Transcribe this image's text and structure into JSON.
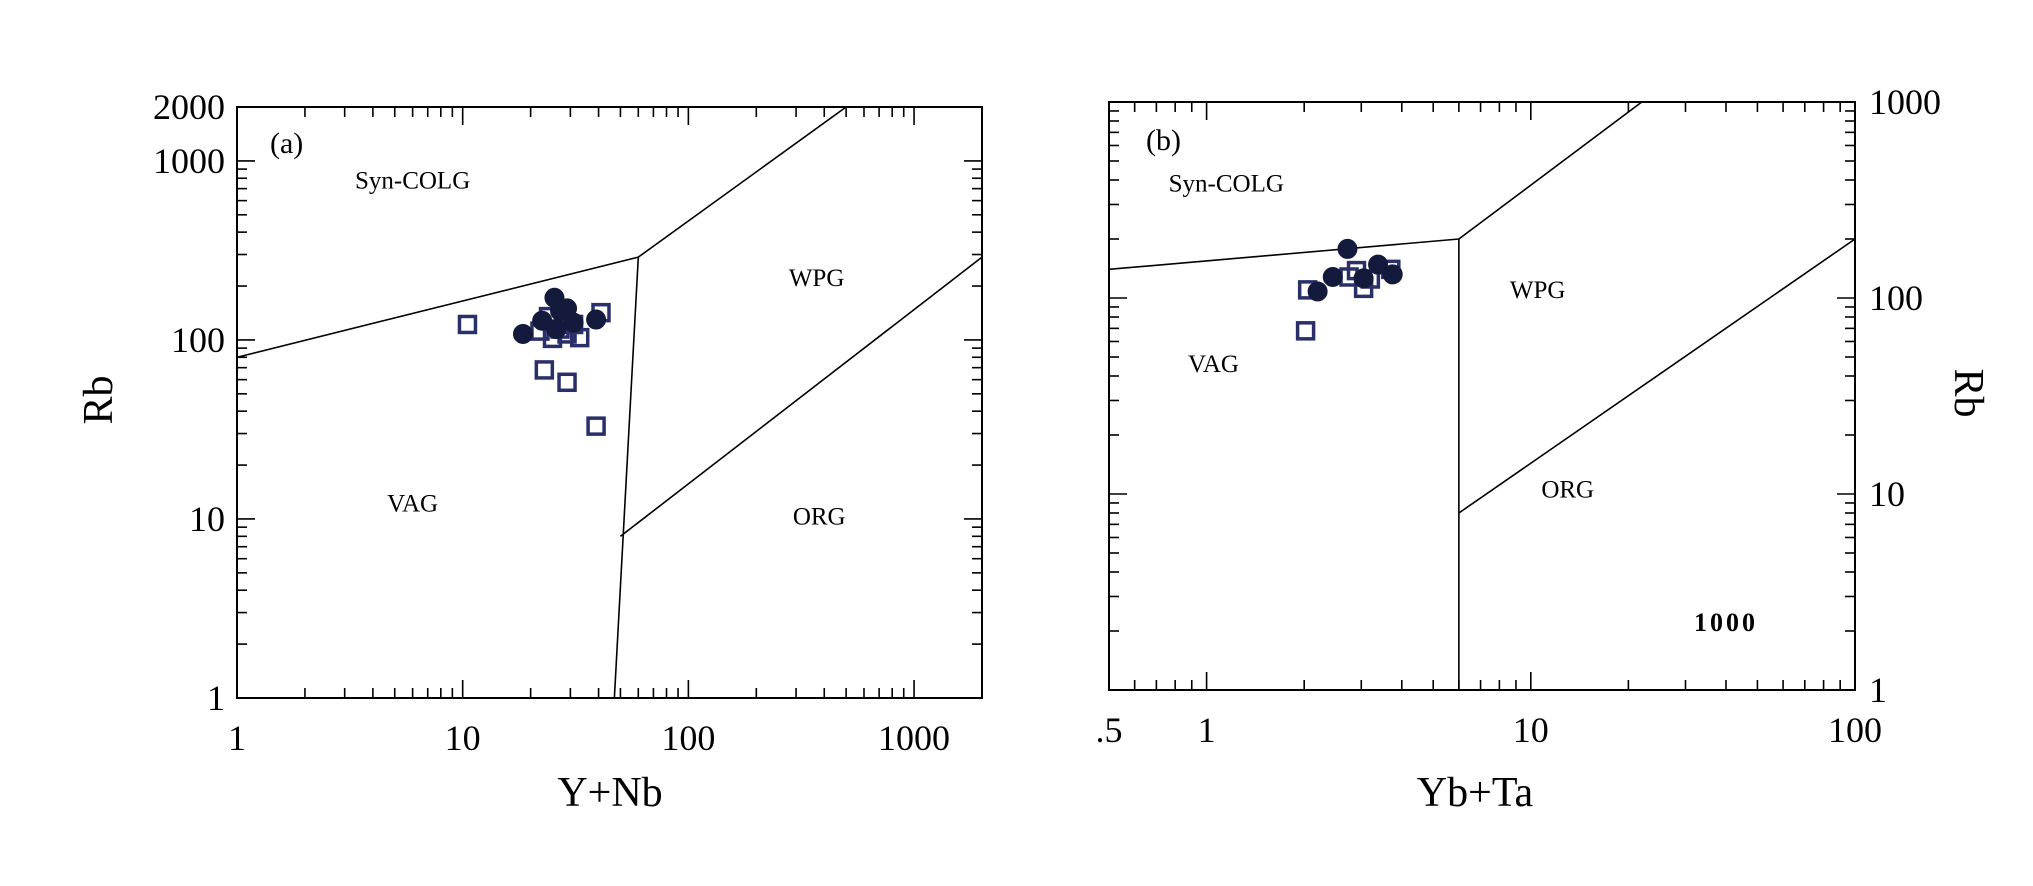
{
  "chart_data": [
    {
      "type": "scatter",
      "panel_label": "(a)",
      "xlabel": "Y+Nb",
      "ylabel": "Rb",
      "xscale": "log",
      "yscale": "log",
      "xlim": [
        1,
        2000
      ],
      "ylim": [
        1,
        2000
      ],
      "x_tick_labels": [
        {
          "value": 1,
          "label": "1"
        },
        {
          "value": 10,
          "label": "10"
        },
        {
          "value": 100,
          "label": "100"
        },
        {
          "value": 1000,
          "label": "1000"
        }
      ],
      "y_tick_labels": [
        {
          "value": 1,
          "label": "1"
        },
        {
          "value": 10,
          "label": "10"
        },
        {
          "value": 100,
          "label": "100"
        },
        {
          "value": 1000,
          "label": "1000"
        },
        {
          "value": 2000,
          "label": "2000"
        }
      ],
      "fields": [
        {
          "label": "Syn-COLG",
          "x": 6,
          "y": 700
        },
        {
          "label": "WPG",
          "x": 370,
          "y": 200
        },
        {
          "label": "VAG",
          "x": 6,
          "y": 11
        },
        {
          "label": "ORG",
          "x": 380,
          "y": 9.3
        }
      ],
      "boundaries": [
        [
          [
            1,
            80
          ],
          [
            60,
            290
          ]
        ],
        [
          [
            60,
            290
          ],
          [
            500,
            2000
          ]
        ],
        [
          [
            60,
            290
          ],
          [
            47,
            1
          ]
        ],
        [
          [
            50,
            8
          ],
          [
            2000,
            290
          ]
        ]
      ],
      "series": [
        {
          "marker": "filled-circle",
          "points": [
            [
              18.5,
              108
            ],
            [
              22.5,
              128
            ],
            [
              25.5,
              172
            ],
            [
              27,
              145
            ],
            [
              29,
              150
            ],
            [
              26,
              115
            ],
            [
              31,
              125
            ],
            [
              39,
              130
            ]
          ]
        },
        {
          "marker": "open-square",
          "points": [
            [
              10.5,
              122
            ],
            [
              22,
              112
            ],
            [
              24,
              135
            ],
            [
              25,
              102
            ],
            [
              27,
              115
            ],
            [
              29,
              108
            ],
            [
              31,
              122
            ],
            [
              33,
              103
            ],
            [
              41,
              142
            ],
            [
              23,
              68
            ],
            [
              29,
              58
            ],
            [
              39,
              33
            ]
          ]
        }
      ]
    },
    {
      "type": "scatter",
      "panel_label": "(b)",
      "xlabel": "Yb+Ta",
      "ylabel": "Rb",
      "xscale": "log",
      "yscale": "log",
      "xlim": [
        0.5,
        100
      ],
      "ylim": [
        1,
        1000
      ],
      "x_tick_labels": [
        {
          "value": 0.5,
          "label": ".5"
        },
        {
          "value": 1,
          "label": "1"
        },
        {
          "value": 10,
          "label": "10"
        },
        {
          "value": 100,
          "label": "100"
        }
      ],
      "y_tick_labels": [
        {
          "value": 1,
          "label": "1"
        },
        {
          "value": 10,
          "label": "10"
        },
        {
          "value": 100,
          "label": "100"
        },
        {
          "value": 1000,
          "label": "1000"
        }
      ],
      "fields": [
        {
          "label": "Syn-COLG",
          "x": 1.15,
          "y": 350
        },
        {
          "label": "WPG",
          "x": 10.5,
          "y": 100
        },
        {
          "label": "VAG",
          "x": 1.05,
          "y": 42
        },
        {
          "label": "ORG",
          "x": 13,
          "y": 9.6
        }
      ],
      "boundaries": [
        [
          [
            0.5,
            140
          ],
          [
            6,
            200
          ]
        ],
        [
          [
            6,
            200
          ],
          [
            22,
            1000
          ]
        ],
        [
          [
            6,
            200
          ],
          [
            6,
            1
          ]
        ],
        [
          [
            6,
            8
          ],
          [
            100,
            200
          ]
        ]
      ],
      "annotations": [
        {
          "text": "1000",
          "x": 40,
          "y": 2
        }
      ],
      "series": [
        {
          "marker": "filled-circle",
          "points": [
            [
              2.2,
              108
            ],
            [
              2.45,
              128
            ],
            [
              2.72,
              178
            ],
            [
              3.05,
              126
            ],
            [
              3.38,
              148
            ],
            [
              3.75,
              132
            ]
          ]
        },
        {
          "marker": "open-square",
          "points": [
            [
              2.05,
              110
            ],
            [
              2.75,
              128
            ],
            [
              2.9,
              138
            ],
            [
              3.05,
              112
            ],
            [
              3.2,
              125
            ],
            [
              3.7,
              140
            ],
            [
              2.02,
              68
            ]
          ]
        }
      ]
    }
  ]
}
